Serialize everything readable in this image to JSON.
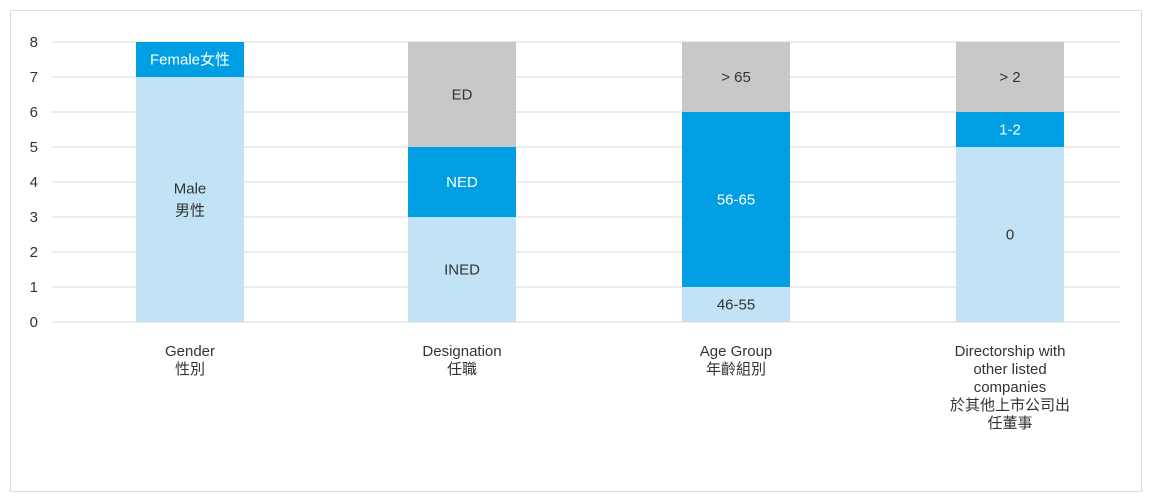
{
  "chart_data": {
    "type": "bar",
    "stacked": true,
    "ylim": [
      0,
      8
    ],
    "yticks": [
      0,
      1,
      2,
      3,
      4,
      5,
      6,
      7,
      8
    ],
    "grid": true,
    "legend": "none",
    "title": "",
    "xlabel": "",
    "ylabel": "",
    "colors": {
      "light": "#c2e2f5",
      "mid": "#009fe3",
      "grey": "#c7c8c9",
      "label_dark": "#333333",
      "label_light": "#ffffff",
      "grid": "#d9d9d9"
    },
    "categories": [
      {
        "label_lines": [
          "Gender",
          "性別"
        ],
        "segments": [
          {
            "label_lines": [
              "Male",
              "男性"
            ],
            "value": 7,
            "color": "light"
          },
          {
            "label_lines": [
              "Female女性"
            ],
            "value": 1,
            "color": "mid"
          }
        ]
      },
      {
        "label_lines": [
          "Designation",
          "任職"
        ],
        "segments": [
          {
            "label_lines": [
              "INED"
            ],
            "value": 3,
            "color": "light"
          },
          {
            "label_lines": [
              "NED"
            ],
            "value": 2,
            "color": "mid"
          },
          {
            "label_lines": [
              "ED"
            ],
            "value": 3,
            "color": "grey"
          }
        ]
      },
      {
        "label_lines": [
          "Age Group",
          "年齡組別"
        ],
        "segments": [
          {
            "label_lines": [
              "46-55"
            ],
            "value": 1,
            "color": "light"
          },
          {
            "label_lines": [
              "56-65"
            ],
            "value": 5,
            "color": "mid"
          },
          {
            "label_lines": [
              "> 65"
            ],
            "value": 2,
            "color": "grey"
          }
        ]
      },
      {
        "label_lines": [
          "Directorship with",
          "other listed",
          "companies",
          "於其他上市公司出",
          "任董事"
        ],
        "segments": [
          {
            "label_lines": [
              "0"
            ],
            "value": 5,
            "color": "light"
          },
          {
            "label_lines": [
              "1-2"
            ],
            "value": 1,
            "color": "mid"
          },
          {
            "label_lines": [
              "> 2"
            ],
            "value": 2,
            "color": "grey"
          }
        ]
      }
    ]
  }
}
